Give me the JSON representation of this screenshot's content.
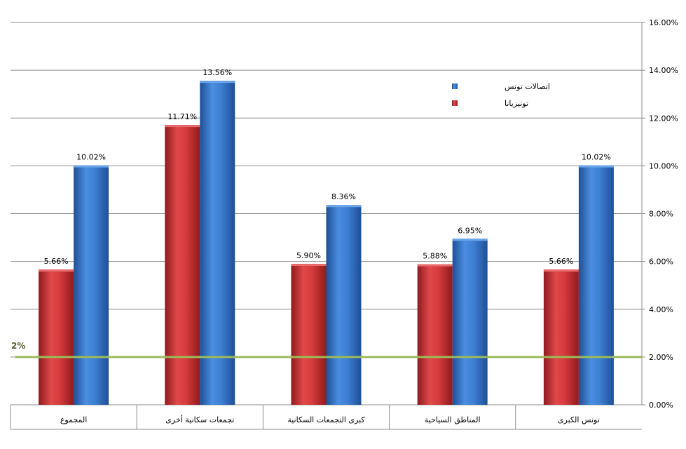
{
  "chart_data": {
    "type": "bar",
    "categories": [
      "المجموع",
      "تجمعات سكانية أخرى",
      "كبرى التجمعات السكانية",
      "المناطق السياحية",
      "تونس الكبرى"
    ],
    "series": [
      {
        "name": "تونيزيانا",
        "color": "#c0282b",
        "values": [
          5.66,
          11.71,
          5.9,
          5.88,
          5.66
        ],
        "labels": [
          "5.66%",
          "11.71%",
          "5.90%",
          "5.88%",
          "5.66%"
        ]
      },
      {
        "name": "اتصالات تونس",
        "color": "#2f6bbf",
        "values": [
          10.02,
          13.56,
          8.36,
          6.95,
          10.02
        ],
        "labels": [
          "10.02%",
          "13.56%",
          "8.36%",
          "6.95%",
          "10.02%"
        ]
      }
    ],
    "ylim": [
      0,
      16
    ],
    "yticks": [
      0,
      2,
      4,
      6,
      8,
      10,
      12,
      14,
      16
    ],
    "ytick_labels": [
      "0.00%",
      "2.00%",
      "4.00%",
      "6.00%",
      "8.00%",
      "10.00%",
      "12.00%",
      "14.00%",
      "16.00%"
    ],
    "y_axis_side": "right",
    "grid": true,
    "legend_position": "top-right",
    "reference_line": {
      "value": 2,
      "label": "2%",
      "color": "#9bbb59"
    }
  }
}
